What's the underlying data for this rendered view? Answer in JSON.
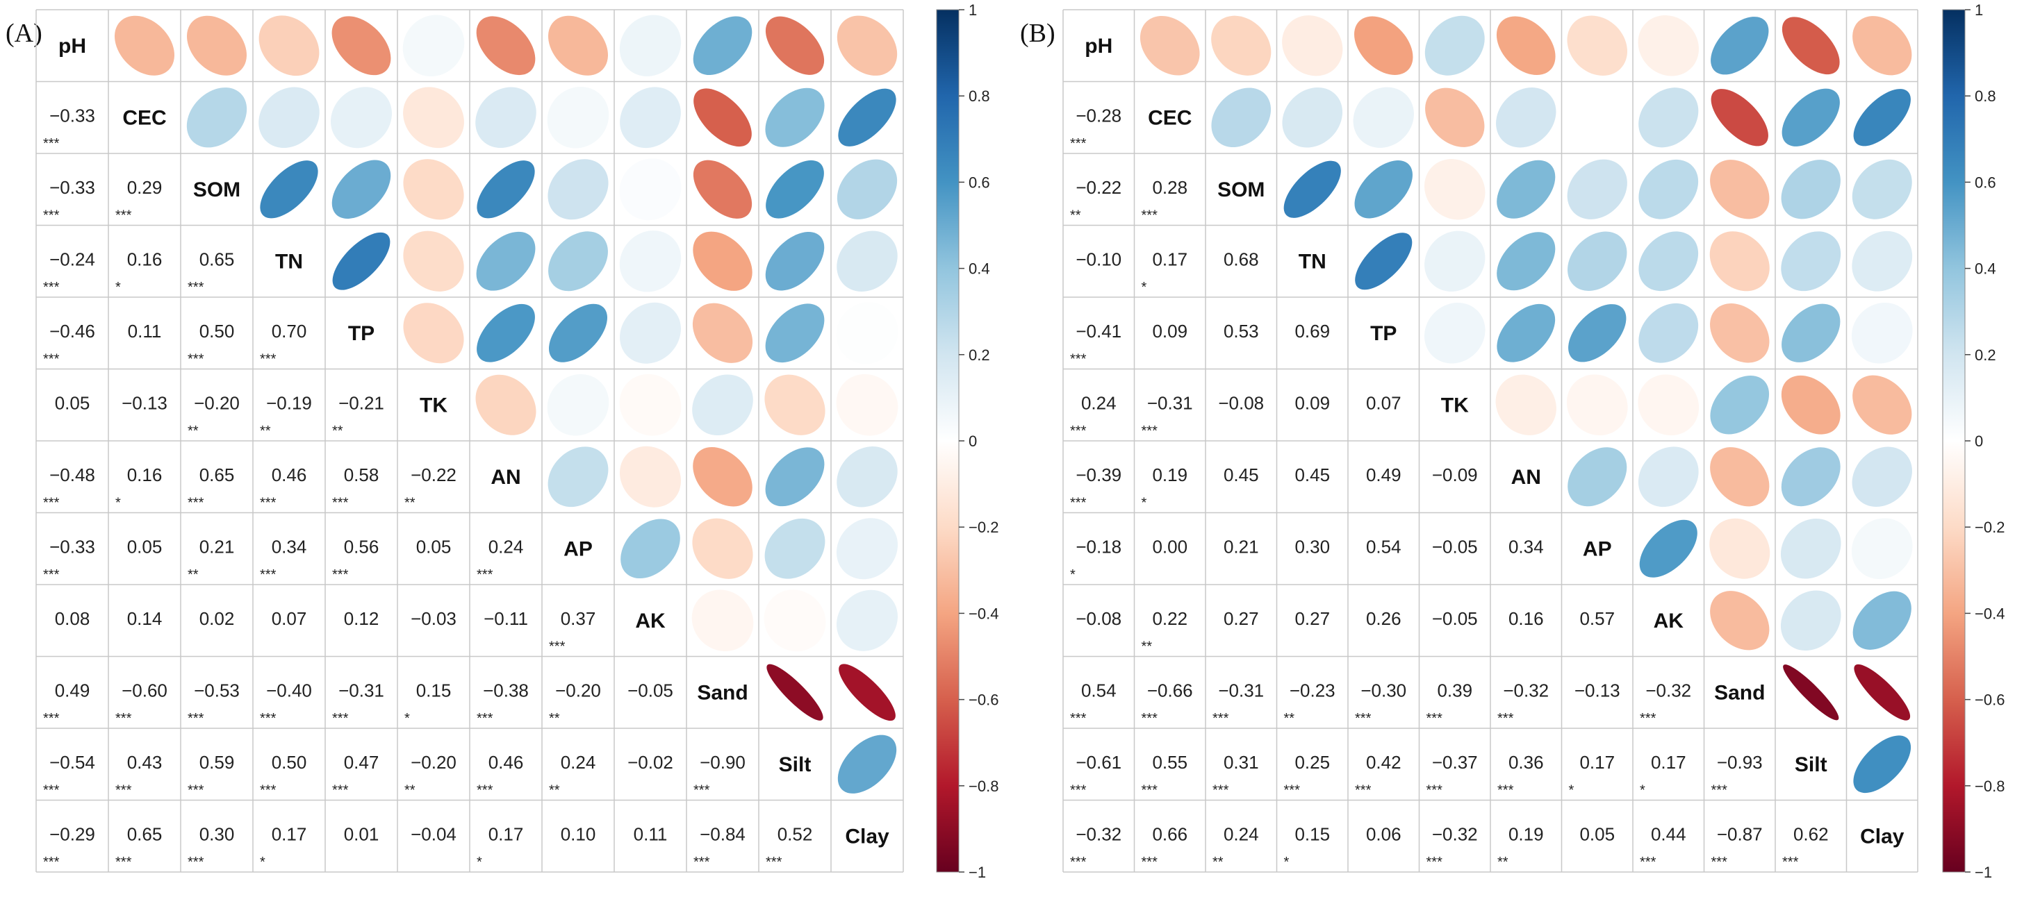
{
  "chart_data": [
    {
      "type": "heatmap",
      "subtype": "correlation-matrix-mixed",
      "panel_label": "(A)",
      "variables": [
        "pH",
        "CEC",
        "SOM",
        "TN",
        "TP",
        "TK",
        "AN",
        "AP",
        "AK",
        "Sand",
        "Silt",
        "Clay"
      ],
      "matrix": [
        [
          1,
          -0.33,
          -0.33,
          -0.24,
          -0.46,
          0.05,
          -0.48,
          -0.33,
          0.08,
          0.49,
          -0.54,
          -0.29
        ],
        [
          -0.33,
          1,
          0.29,
          0.16,
          0.11,
          -0.13,
          0.16,
          0.05,
          0.14,
          -0.6,
          0.43,
          0.65
        ],
        [
          -0.33,
          0.29,
          1,
          0.65,
          0.5,
          -0.2,
          0.65,
          0.21,
          0.02,
          -0.53,
          0.59,
          0.3
        ],
        [
          -0.24,
          0.16,
          0.65,
          1,
          0.7,
          -0.19,
          0.46,
          0.34,
          0.07,
          -0.4,
          0.5,
          0.17
        ],
        [
          -0.46,
          0.11,
          0.5,
          0.7,
          1,
          -0.21,
          0.58,
          0.56,
          0.12,
          -0.31,
          0.47,
          0.01
        ],
        [
          0.05,
          -0.13,
          -0.2,
          -0.19,
          -0.21,
          1,
          -0.22,
          0.05,
          -0.03,
          0.15,
          -0.2,
          -0.04
        ],
        [
          -0.48,
          0.16,
          0.65,
          0.46,
          0.58,
          -0.22,
          1,
          0.24,
          -0.11,
          -0.38,
          0.46,
          0.17
        ],
        [
          -0.33,
          0.05,
          0.21,
          0.34,
          0.56,
          0.05,
          0.24,
          1,
          0.37,
          -0.2,
          0.24,
          0.1
        ],
        [
          0.08,
          0.14,
          0.02,
          0.07,
          0.12,
          -0.03,
          -0.11,
          0.37,
          1,
          -0.05,
          -0.02,
          0.11
        ],
        [
          0.49,
          -0.6,
          -0.53,
          -0.4,
          -0.31,
          0.15,
          -0.38,
          -0.2,
          -0.05,
          1,
          -0.9,
          -0.84
        ],
        [
          -0.54,
          0.43,
          0.59,
          0.5,
          0.47,
          -0.2,
          0.46,
          0.24,
          -0.02,
          -0.9,
          1,
          0.52
        ],
        [
          -0.29,
          0.65,
          0.3,
          0.17,
          0.01,
          -0.04,
          0.17,
          0.1,
          0.11,
          -0.84,
          0.52,
          1
        ]
      ],
      "lower_text": [
        [
          "",
          "",
          "",
          "",
          "",
          "",
          "",
          "",
          "",
          "",
          "",
          ""
        ],
        [
          "−0.33",
          "",
          "",
          "",
          "",
          "",
          "",
          "",
          "",
          "",
          "",
          ""
        ],
        [
          "−0.33",
          "0.29",
          "",
          "",
          "",
          "",
          "",
          "",
          "",
          "",
          "",
          ""
        ],
        [
          "−0.24",
          "0.16",
          "0.65",
          "",
          "",
          "",
          "",
          "",
          "",
          "",
          "",
          ""
        ],
        [
          "−0.46",
          "0.11",
          "0.50",
          "0.70",
          "",
          "",
          "",
          "",
          "",
          "",
          "",
          ""
        ],
        [
          "0.05",
          "−0.13",
          "−0.20",
          "−0.19",
          "−0.21",
          "",
          "",
          "",
          "",
          "",
          "",
          ""
        ],
        [
          "−0.48",
          "0.16",
          "0.65",
          "0.46",
          "0.58",
          "−0.22",
          "",
          "",
          "",
          "",
          "",
          ""
        ],
        [
          "−0.33",
          "0.05",
          "0.21",
          "0.34",
          "0.56",
          "0.05",
          "0.24",
          "",
          "",
          "",
          "",
          ""
        ],
        [
          "0.08",
          "0.14",
          "0.02",
          "0.07",
          "0.12",
          "−0.03",
          "−0.11",
          "0.37",
          "",
          "",
          "",
          ""
        ],
        [
          "0.49",
          "−0.60",
          "−0.53",
          "−0.40",
          "−0.31",
          "0.15",
          "−0.38",
          "−0.20",
          "−0.05",
          "",
          "",
          ""
        ],
        [
          "−0.54",
          "0.43",
          "0.59",
          "0.50",
          "0.47",
          "−0.20",
          "0.46",
          "0.24",
          "−0.02",
          "−0.90",
          "",
          ""
        ],
        [
          "−0.29",
          "0.65",
          "0.30",
          "0.17",
          "0.01",
          "−0.04",
          "0.17",
          "0.10",
          "0.11",
          "−0.84",
          "0.52",
          ""
        ]
      ],
      "significance": [
        [
          "",
          "",
          "",
          "",
          "",
          "",
          "",
          "",
          "",
          "",
          "",
          ""
        ],
        [
          "***",
          "",
          "",
          "",
          "",
          "",
          "",
          "",
          "",
          "",
          "",
          ""
        ],
        [
          "***",
          "***",
          "",
          "",
          "",
          "",
          "",
          "",
          "",
          "",
          "",
          ""
        ],
        [
          "***",
          "*",
          "***",
          "",
          "",
          "",
          "",
          "",
          "",
          "",
          "",
          ""
        ],
        [
          "***",
          "",
          "***",
          "***",
          "",
          "",
          "",
          "",
          "",
          "",
          "",
          ""
        ],
        [
          "",
          "",
          "**",
          "**",
          "**",
          "",
          "",
          "",
          "",
          "",
          "",
          ""
        ],
        [
          "***",
          "*",
          "***",
          "***",
          "***",
          "**",
          "",
          "",
          "",
          "",
          "",
          ""
        ],
        [
          "***",
          "",
          "**",
          "***",
          "***",
          "",
          "***",
          "",
          "",
          "",
          "",
          ""
        ],
        [
          "",
          "",
          "",
          "",
          "",
          "",
          "",
          "***",
          "",
          "",
          "",
          ""
        ],
        [
          "***",
          "***",
          "***",
          "***",
          "***",
          "*",
          "***",
          "**",
          "",
          "",
          "",
          ""
        ],
        [
          "***",
          "***",
          "***",
          "***",
          "***",
          "**",
          "***",
          "**",
          "",
          "***",
          "",
          ""
        ],
        [
          "***",
          "***",
          "***",
          "*",
          "",
          "",
          "*",
          "",
          "",
          "***",
          "***",
          ""
        ]
      ],
      "colorbar": {
        "min": -1,
        "max": 1,
        "ticks": [
          "−1",
          "−0.8",
          "−0.6",
          "−0.4",
          "−0.2",
          "0",
          "0.2",
          "0.4",
          "0.6",
          "0.8",
          "1"
        ]
      }
    },
    {
      "type": "heatmap",
      "subtype": "correlation-matrix-mixed",
      "panel_label": "(B)",
      "variables": [
        "pH",
        "CEC",
        "SOM",
        "TN",
        "TP",
        "TK",
        "AN",
        "AP",
        "AK",
        "Sand",
        "Silt",
        "Clay"
      ],
      "matrix": [
        [
          1,
          -0.28,
          -0.22,
          -0.1,
          -0.41,
          0.24,
          -0.39,
          -0.18,
          -0.08,
          0.54,
          -0.61,
          -0.32
        ],
        [
          -0.28,
          1,
          0.28,
          0.17,
          0.09,
          -0.31,
          0.19,
          0.0,
          0.22,
          -0.66,
          0.55,
          0.66
        ],
        [
          -0.22,
          0.28,
          1,
          0.68,
          0.53,
          -0.08,
          0.45,
          0.21,
          0.27,
          -0.31,
          0.31,
          0.24
        ],
        [
          -0.1,
          0.17,
          0.68,
          1,
          0.69,
          0.09,
          0.45,
          0.3,
          0.27,
          -0.23,
          0.25,
          0.15
        ],
        [
          -0.41,
          0.09,
          0.53,
          0.69,
          1,
          0.07,
          0.49,
          0.54,
          0.26,
          -0.3,
          0.42,
          0.06
        ],
        [
          0.24,
          -0.31,
          -0.08,
          0.09,
          0.07,
          1,
          -0.09,
          -0.05,
          -0.05,
          0.39,
          -0.37,
          -0.32
        ],
        [
          -0.39,
          0.19,
          0.45,
          0.45,
          0.49,
          -0.09,
          1,
          0.34,
          0.16,
          -0.32,
          0.36,
          0.19
        ],
        [
          -0.18,
          0.0,
          0.21,
          0.3,
          0.54,
          -0.05,
          0.34,
          1,
          0.57,
          -0.13,
          0.17,
          0.05
        ],
        [
          -0.08,
          0.22,
          0.27,
          0.27,
          0.26,
          -0.05,
          0.16,
          0.57,
          1,
          -0.32,
          0.17,
          0.44
        ],
        [
          0.54,
          -0.66,
          -0.31,
          -0.23,
          -0.3,
          0.39,
          -0.32,
          -0.13,
          -0.32,
          1,
          -0.93,
          -0.87
        ],
        [
          -0.61,
          0.55,
          0.31,
          0.25,
          0.42,
          -0.37,
          0.36,
          0.17,
          0.17,
          -0.93,
          1,
          0.62
        ],
        [
          -0.32,
          0.66,
          0.24,
          0.15,
          0.06,
          -0.32,
          0.19,
          0.05,
          0.44,
          -0.87,
          0.62,
          1
        ]
      ],
      "lower_text": [
        [
          "",
          "",
          "",
          "",
          "",
          "",
          "",
          "",
          "",
          "",
          "",
          ""
        ],
        [
          "−0.28",
          "",
          "",
          "",
          "",
          "",
          "",
          "",
          "",
          "",
          "",
          ""
        ],
        [
          "−0.22",
          "0.28",
          "",
          "",
          "",
          "",
          "",
          "",
          "",
          "",
          "",
          ""
        ],
        [
          "−0.10",
          "0.17",
          "0.68",
          "",
          "",
          "",
          "",
          "",
          "",
          "",
          "",
          ""
        ],
        [
          "−0.41",
          "0.09",
          "0.53",
          "0.69",
          "",
          "",
          "",
          "",
          "",
          "",
          "",
          ""
        ],
        [
          "0.24",
          "−0.31",
          "−0.08",
          "0.09",
          "0.07",
          "",
          "",
          "",
          "",
          "",
          "",
          ""
        ],
        [
          "−0.39",
          "0.19",
          "0.45",
          "0.45",
          "0.49",
          "−0.09",
          "",
          "",
          "",
          "",
          "",
          ""
        ],
        [
          "−0.18",
          "0.00",
          "0.21",
          "0.30",
          "0.54",
          "−0.05",
          "0.34",
          "",
          "",
          "",
          "",
          ""
        ],
        [
          "−0.08",
          "0.22",
          "0.27",
          "0.27",
          "0.26",
          "−0.05",
          "0.16",
          "0.57",
          "",
          "",
          "",
          ""
        ],
        [
          "0.54",
          "−0.66",
          "−0.31",
          "−0.23",
          "−0.30",
          "0.39",
          "−0.32",
          "−0.13",
          "−0.32",
          "",
          "",
          ""
        ],
        [
          "−0.61",
          "0.55",
          "0.31",
          "0.25",
          "0.42",
          "−0.37",
          "0.36",
          "0.17",
          "0.17",
          "−0.93",
          "",
          ""
        ],
        [
          "−0.32",
          "0.66",
          "0.24",
          "0.15",
          "0.06",
          "−0.32",
          "0.19",
          "0.05",
          "0.44",
          "−0.87",
          "0.62",
          ""
        ]
      ],
      "significance": [
        [
          "",
          "",
          "",
          "",
          "",
          "",
          "",
          "",
          "",
          "",
          "",
          ""
        ],
        [
          "***",
          "",
          "",
          "",
          "",
          "",
          "",
          "",
          "",
          "",
          "",
          ""
        ],
        [
          "**",
          "***",
          "",
          "",
          "",
          "",
          "",
          "",
          "",
          "",
          "",
          ""
        ],
        [
          "",
          "*",
          "",
          "",
          "",
          "",
          "",
          "",
          "",
          "",
          "",
          ""
        ],
        [
          "***",
          "",
          "",
          "",
          "",
          "",
          "",
          "",
          "",
          "",
          "",
          ""
        ],
        [
          "***",
          "***",
          "",
          "",
          "",
          "",
          "",
          "",
          "",
          "",
          "",
          ""
        ],
        [
          "***",
          "*",
          "",
          "",
          "",
          "",
          "",
          "",
          "",
          "",
          "",
          ""
        ],
        [
          "*",
          "",
          "",
          "",
          "",
          "",
          "",
          "",
          "",
          "",
          "",
          ""
        ],
        [
          "",
          "**",
          "",
          "",
          "",
          "",
          "",
          "",
          "",
          "",
          "",
          ""
        ],
        [
          "***",
          "***",
          "***",
          "**",
          "***",
          "***",
          "***",
          "",
          "***",
          "",
          "",
          ""
        ],
        [
          "***",
          "***",
          "***",
          "***",
          "***",
          "***",
          "***",
          "*",
          "*",
          "***",
          "",
          ""
        ],
        [
          "***",
          "***",
          "**",
          "*",
          "",
          "***",
          "**",
          "",
          "***",
          "***",
          "***",
          ""
        ]
      ],
      "colorbar": {
        "min": -1,
        "max": 1,
        "ticks": [
          "−1",
          "−0.8",
          "−0.6",
          "−0.4",
          "−0.2",
          "0",
          "0.2",
          "0.4",
          "0.6",
          "0.8",
          "1"
        ]
      }
    }
  ]
}
